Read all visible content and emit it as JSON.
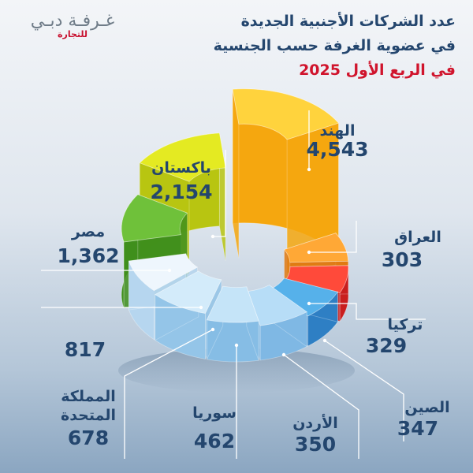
{
  "logo": {
    "main": "غـرفـة دبـي",
    "sub": "للتجارة"
  },
  "title": {
    "line1": "عدد الشركات الأجنبية الجديدة",
    "line2": "في عضوية الغرفة حسب الجنسية",
    "line3": "في الربع الأول 2025"
  },
  "colors": {
    "title": "#24466e",
    "accent_red": "#d0142c",
    "label_dark": "#24466e",
    "label_light": "#ffffff"
  },
  "chart_data": {
    "type": "pie",
    "style": "3d-exploded-donut",
    "slices": [
      {
        "name": "الهند",
        "value": "4,543"
      },
      {
        "name": "العراق",
        "value": "303"
      },
      {
        "name": "تركيا",
        "value": "329"
      },
      {
        "name": "الصين",
        "value": "347"
      },
      {
        "name": "الأردن",
        "value": "350"
      },
      {
        "name": "سوريا",
        "value": "462"
      },
      {
        "name": "المملكة المتحدة",
        "value": "678"
      },
      {
        "name": "",
        "value": "817"
      },
      {
        "name": "مصر",
        "value": "1,362"
      },
      {
        "name": "باكستان",
        "value": "2,154"
      }
    ]
  }
}
